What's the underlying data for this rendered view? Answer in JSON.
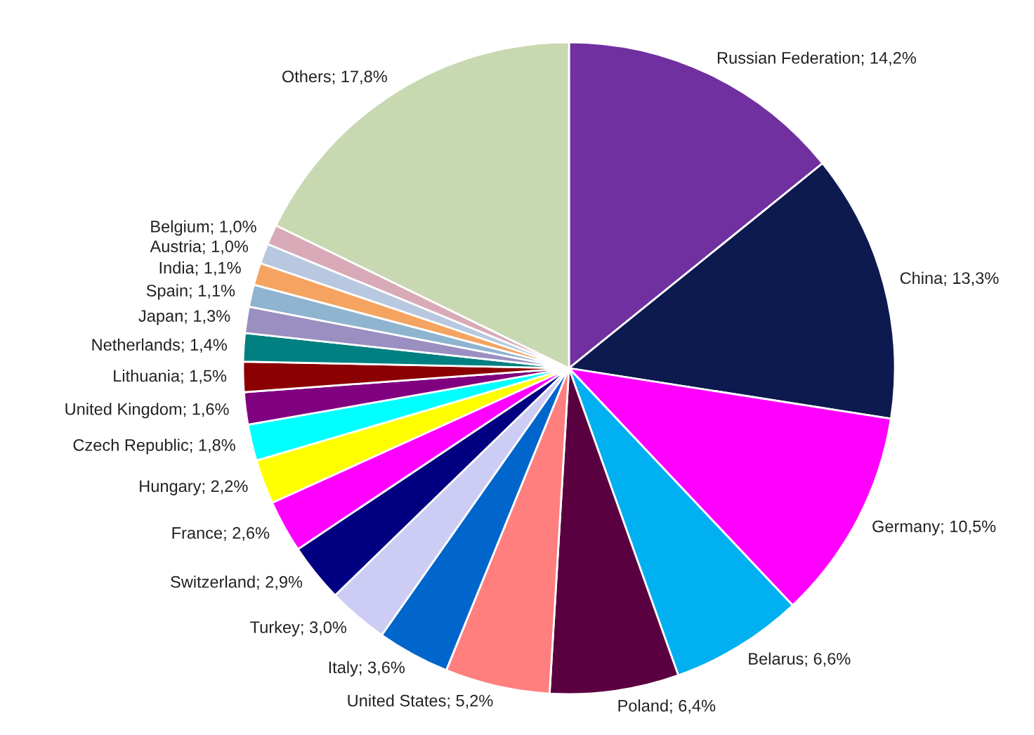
{
  "chart_data": {
    "type": "pie",
    "categories": [
      "Russian Federation",
      "China",
      "Germany",
      "Belarus",
      "Poland",
      "United States",
      "Italy",
      "Turkey",
      "Switzerland",
      "France",
      "Hungary",
      "Czech Republic",
      "United Kingdom",
      "Lithuania",
      "Netherlands",
      "Japan",
      "Spain",
      "India",
      "Austria",
      "Belgium",
      "Others"
    ],
    "values": [
      14.2,
      13.3,
      10.5,
      6.6,
      6.4,
      5.2,
      3.6,
      3.0,
      2.9,
      2.6,
      2.2,
      1.8,
      1.6,
      1.5,
      1.4,
      1.3,
      1.1,
      1.1,
      1.0,
      1.0,
      17.8
    ],
    "value_labels": [
      "14,2%",
      "13,3%",
      "10,5%",
      "6,6%",
      "6,4%",
      "5,2%",
      "3,6%",
      "3,0%",
      "2,9%",
      "2,6%",
      "2,2%",
      "1,8%",
      "1,6%",
      "1,5%",
      "1,4%",
      "1,3%",
      "1,1%",
      "1,1%",
      "1,0%",
      "1,0%",
      "17,8%"
    ],
    "colors": [
      "#7030a0",
      "#0d1a4f",
      "#ff00ff",
      "#00b0f0",
      "#5a0040",
      "#ff7f7f",
      "#0066cc",
      "#ccccf4",
      "#000080",
      "#ff00ff",
      "#ffff00",
      "#00ffff",
      "#800080",
      "#8b0000",
      "#008080",
      "#9a8fc0",
      "#8fb4d0",
      "#f4a460",
      "#b8c8e0",
      "#d8aab8",
      "#c8d8b0"
    ]
  }
}
